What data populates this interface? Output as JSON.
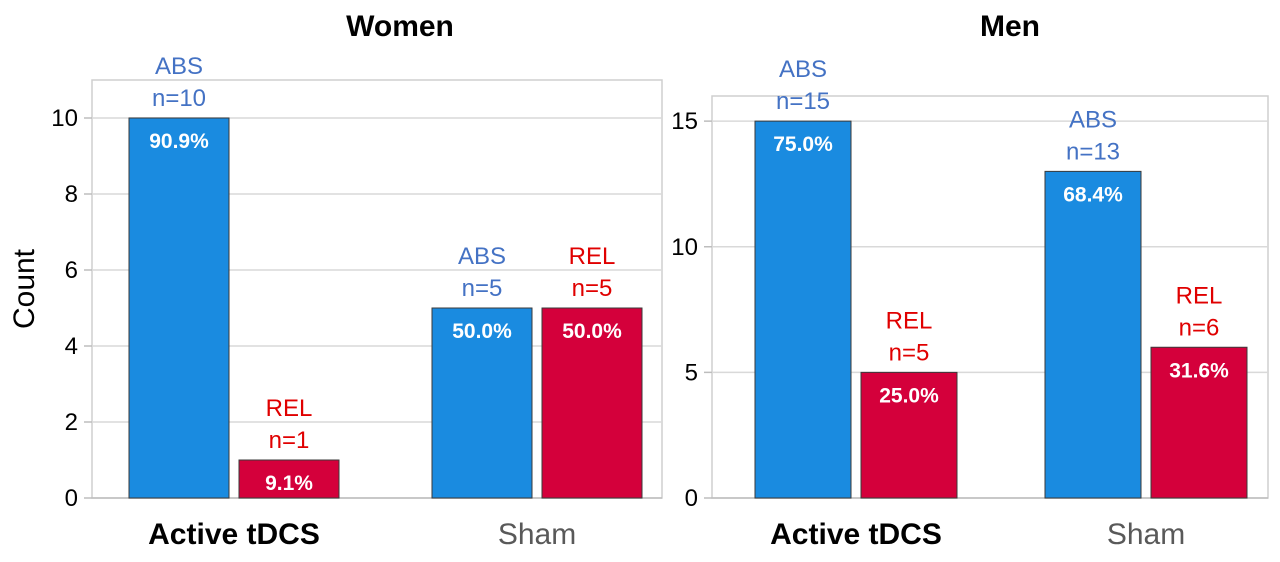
{
  "chart_data": [
    {
      "type": "bar",
      "title": "Women",
      "ylabel": "Count",
      "ylim": [
        0,
        11
      ],
      "yticks": [
        0,
        2,
        4,
        6,
        8,
        10
      ],
      "categories": [
        "Active tDCS",
        "Sham"
      ],
      "category_styles": [
        "bold",
        "normal"
      ],
      "series": [
        {
          "name": "ABS",
          "color": "#1a8be0",
          "values": [
            10,
            5
          ],
          "labels": [
            "n=10",
            "n=5"
          ],
          "percents": [
            "90.9%",
            "50.0%"
          ]
        },
        {
          "name": "REL",
          "color": "#d4003b",
          "values": [
            1,
            5
          ],
          "labels": [
            "n=1",
            "n=5"
          ],
          "percents": [
            "9.1%",
            "50.0%"
          ]
        }
      ]
    },
    {
      "type": "bar",
      "title": "Men",
      "ylabel": "",
      "ylim": [
        0,
        16
      ],
      "yticks": [
        0,
        5,
        10,
        15
      ],
      "categories": [
        "Active tDCS",
        "Sham"
      ],
      "category_styles": [
        "bold",
        "normal"
      ],
      "series": [
        {
          "name": "ABS",
          "color": "#1a8be0",
          "values": [
            15,
            13
          ],
          "labels": [
            "n=15",
            "n=13"
          ],
          "percents": [
            "75.0%",
            "68.4%"
          ]
        },
        {
          "name": "REL",
          "color": "#d4003b",
          "values": [
            5,
            6
          ],
          "labels": [
            "n=5",
            "n=6"
          ],
          "percents": [
            "25.0%",
            "31.6%"
          ]
        }
      ]
    }
  ],
  "colors": {
    "abs_label": "#4472c4",
    "rel_label": "#e00000",
    "cat_bold": "#000000",
    "cat_normal": "#595959"
  }
}
